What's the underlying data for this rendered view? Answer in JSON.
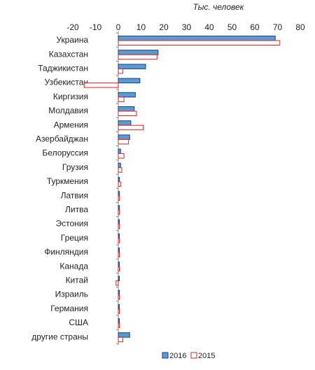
{
  "chart_data": {
    "type": "bar",
    "orientation": "horizontal",
    "unit_label": "Тыс. человек",
    "categories": [
      "Украина",
      "Казахстан",
      "Таджикистан",
      "Узбекистан",
      "Киргизия",
      "Молдавия",
      "Армения",
      "Азербайджан",
      "Белоруссия",
      "Грузия",
      "Туркмения",
      "Латвия",
      "Литва",
      "Эстония",
      "Греция",
      "Финляндия",
      "Канада",
      "Китай",
      "Израиль",
      "Германия",
      "США",
      "другие страны"
    ],
    "series": [
      {
        "name": "2016",
        "fill": "#5b9bd5",
        "stroke": "#1f3f7a",
        "values": [
          69,
          17.5,
          12,
          9.5,
          7.5,
          7,
          5.5,
          5,
          1,
          1,
          0.5,
          0.5,
          0.5,
          0.3,
          0.3,
          0.3,
          0.3,
          0.3,
          0.3,
          0.3,
          0.2,
          5
        ]
      },
      {
        "name": "2015",
        "fill": "#ffffff",
        "stroke": "#e02020",
        "values": [
          71,
          17,
          2,
          -15,
          2.5,
          8,
          11,
          4.5,
          2.5,
          1.5,
          1,
          0.5,
          0.5,
          0.5,
          0.5,
          0.3,
          0.3,
          -1,
          0.3,
          0.3,
          0.3,
          2
        ]
      }
    ],
    "xlim": [
      -20,
      80
    ],
    "ticks": [
      -20,
      -10,
      0,
      10,
      20,
      30,
      40,
      50,
      60,
      70,
      80
    ],
    "grid": false,
    "legend_position": "bottom-center"
  }
}
